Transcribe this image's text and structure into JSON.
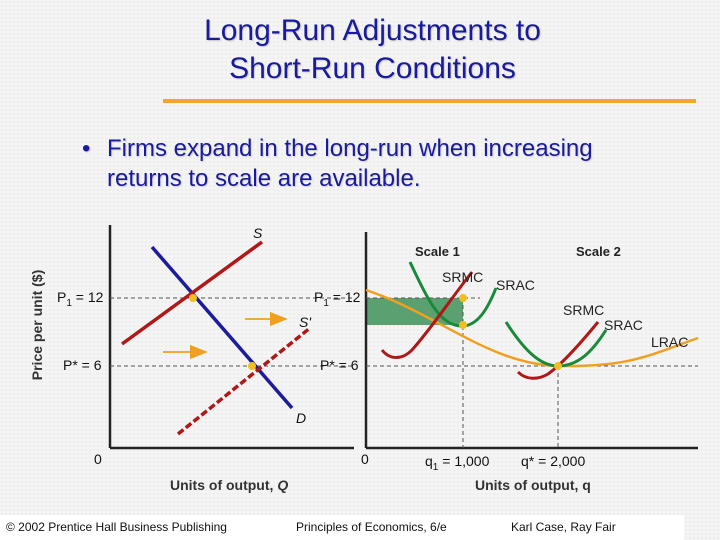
{
  "slide": {
    "title_line1": "Long-Run Adjustments to",
    "title_line2": "Short-Run Conditions",
    "bullet_symbol": "•",
    "bullet_text": "Firms expand in the long-run when increasing returns to scale are available."
  },
  "left_graph": {
    "y_axis_label": "Price per unit ($)",
    "x_axis_label_text": "Units of output, ",
    "x_axis_label_var": "Q",
    "origin_label": "0",
    "p1_label": "P",
    "p1_sub": "1",
    "p1_value": " = 12",
    "pstar_label": "P* = 6",
    "supply_label": "S",
    "supply_shift_label": "S'",
    "demand_label": "D",
    "supply_color": "#b01818",
    "demand_color": "#1c1c9c"
  },
  "right_graph": {
    "x_axis_label": "Units of output, q",
    "origin_label": "0",
    "p1_label": "P",
    "p1_sub": "1",
    "p1_value": " = 12",
    "pstar_label": "P* = 6",
    "scale1_label": "Scale 1",
    "scale2_label": "Scale 2",
    "srmc1_label": "SRMC",
    "srac1_label": "SRAC",
    "srmc2_label": "SRMC",
    "srac2_label": "SRAC",
    "lrac_label": "LRAC",
    "q1_label": "q",
    "q1_sub": "1",
    "q1_value": " = 1,000",
    "qstar_label": "q* = 2,000",
    "profit_color": "#5aa070",
    "lrac_color": "#f0a020",
    "srac_color": "#1a8a3a",
    "srmc_color": "#b01818"
  },
  "footer": {
    "publisher": "© 2002 Prentice Hall Business Publishing",
    "book": "Principles of Economics, 6/e",
    "authors": "Karl Case, Ray Fair"
  }
}
